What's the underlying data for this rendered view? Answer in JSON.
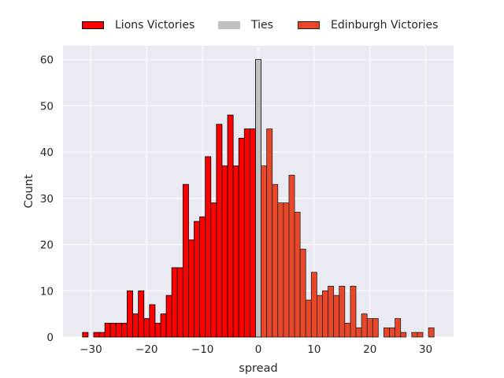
{
  "chart_data": {
    "type": "bar",
    "xlabel": "spread",
    "ylabel": "Count",
    "xlim": [
      -35,
      35
    ],
    "ylim": [
      0,
      63
    ],
    "xticks": [
      -30,
      -20,
      -10,
      0,
      10,
      20,
      30
    ],
    "yticks": [
      0,
      10,
      20,
      30,
      40,
      50,
      60
    ],
    "xtick_labels": [
      "−30",
      "−20",
      "−10",
      "0",
      "10",
      "20",
      "30"
    ],
    "ytick_labels": [
      "0",
      "10",
      "20",
      "30",
      "40",
      "50",
      "60"
    ],
    "grid": true,
    "legend_position": "top-center",
    "background": "#eaeaf2",
    "series": [
      {
        "name": "Lions Victories",
        "color": "#ff0000",
        "edge": "#000000",
        "x": [
          -31,
          -29,
          -28,
          -27,
          -26,
          -25,
          -24,
          -23,
          -22,
          -21,
          -20,
          -19,
          -18,
          -17,
          -16,
          -15,
          -14,
          -13,
          -12,
          -11,
          -10,
          -9,
          -8,
          -7,
          -6,
          -5,
          -4,
          -3,
          -2,
          -1
        ],
        "values": [
          1,
          1,
          1,
          3,
          3,
          3,
          3,
          10,
          5,
          10,
          4,
          7,
          3,
          5,
          9,
          15,
          15,
          33,
          21,
          25,
          26,
          39,
          29,
          46,
          37,
          48,
          37,
          43,
          45,
          45
        ]
      },
      {
        "name": "Ties",
        "color": "#c0c0c0",
        "edge": "#000000",
        "x": [
          0
        ],
        "values": [
          60
        ]
      },
      {
        "name": "Edinburgh Victories",
        "color": "#e8472a",
        "edge": "#222222",
        "x": [
          1,
          2,
          3,
          4,
          5,
          6,
          7,
          8,
          9,
          10,
          11,
          12,
          13,
          14,
          15,
          16,
          17,
          18,
          19,
          20,
          21,
          23,
          24,
          25,
          26,
          28,
          29,
          31
        ],
        "values": [
          37,
          45,
          33,
          29,
          29,
          35,
          27,
          19,
          8,
          14,
          9,
          10,
          11,
          9,
          11,
          3,
          11,
          2,
          5,
          4,
          4,
          2,
          2,
          4,
          1,
          1,
          1,
          2
        ]
      }
    ]
  }
}
